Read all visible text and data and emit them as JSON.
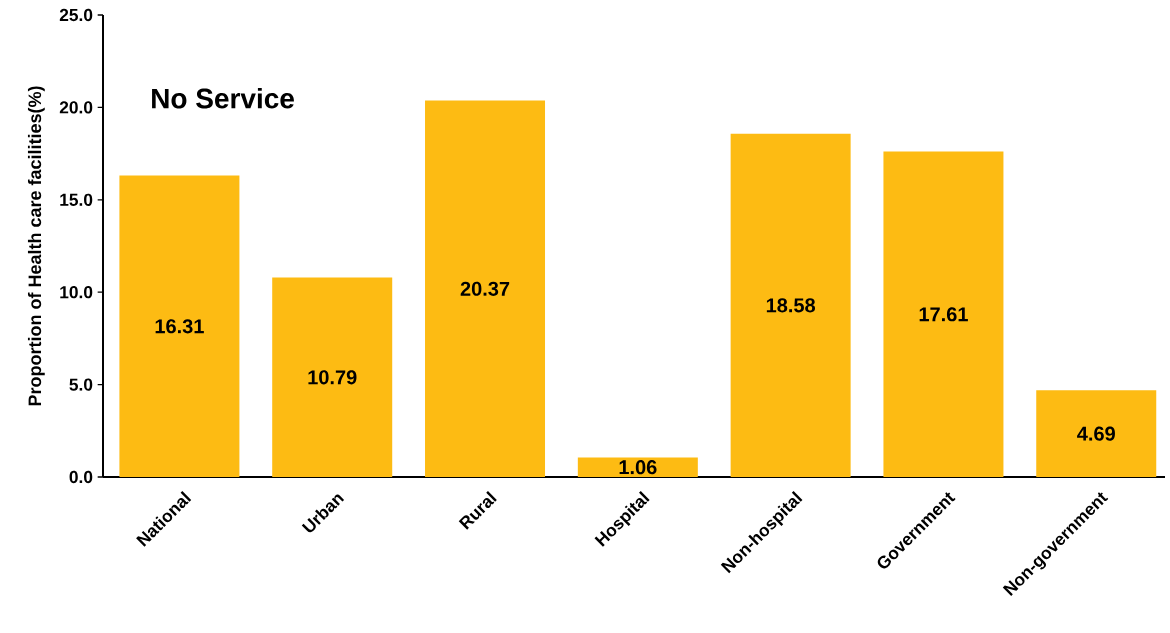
{
  "chart_data": {
    "type": "bar",
    "title": "No Service",
    "ylabel": "Proportion of Health care facilities(%)",
    "categories": [
      "National",
      "Urban",
      "Rural",
      "Hospital",
      "Non-hospital",
      "Government",
      "Non-government"
    ],
    "values": [
      16.31,
      10.79,
      20.37,
      1.06,
      18.58,
      17.61,
      4.69
    ],
    "color": "#fdbb13",
    "ylim": [
      0,
      25
    ],
    "yticks": [
      {
        "value": 0,
        "label": "0.0"
      },
      {
        "value": 5,
        "label": "5.0"
      },
      {
        "value": 10,
        "label": "10.0"
      },
      {
        "value": 15,
        "label": "15.0"
      },
      {
        "value": 20,
        "label": "20.0"
      },
      {
        "value": 25,
        "label": "25.0"
      }
    ],
    "data_labels": true,
    "grid": false
  }
}
